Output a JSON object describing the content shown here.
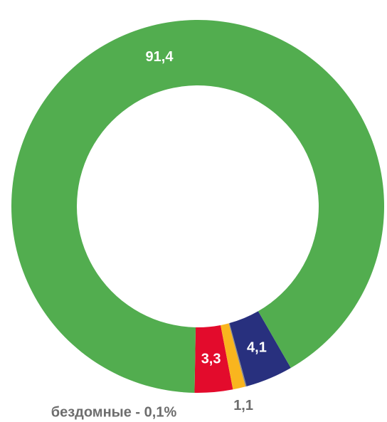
{
  "chart_data": {
    "type": "donut",
    "values": [
      3.3,
      1.1,
      0.1,
      4.1,
      91.4
    ],
    "value_labels": [
      "3,3",
      "1,1",
      "бездомные - 0,1%",
      "4,1",
      "91,4"
    ],
    "colors": [
      "#e30b2c",
      "#f9b51e",
      "#8a8a8a",
      "#28307e",
      "#52ad4f"
    ]
  }
}
